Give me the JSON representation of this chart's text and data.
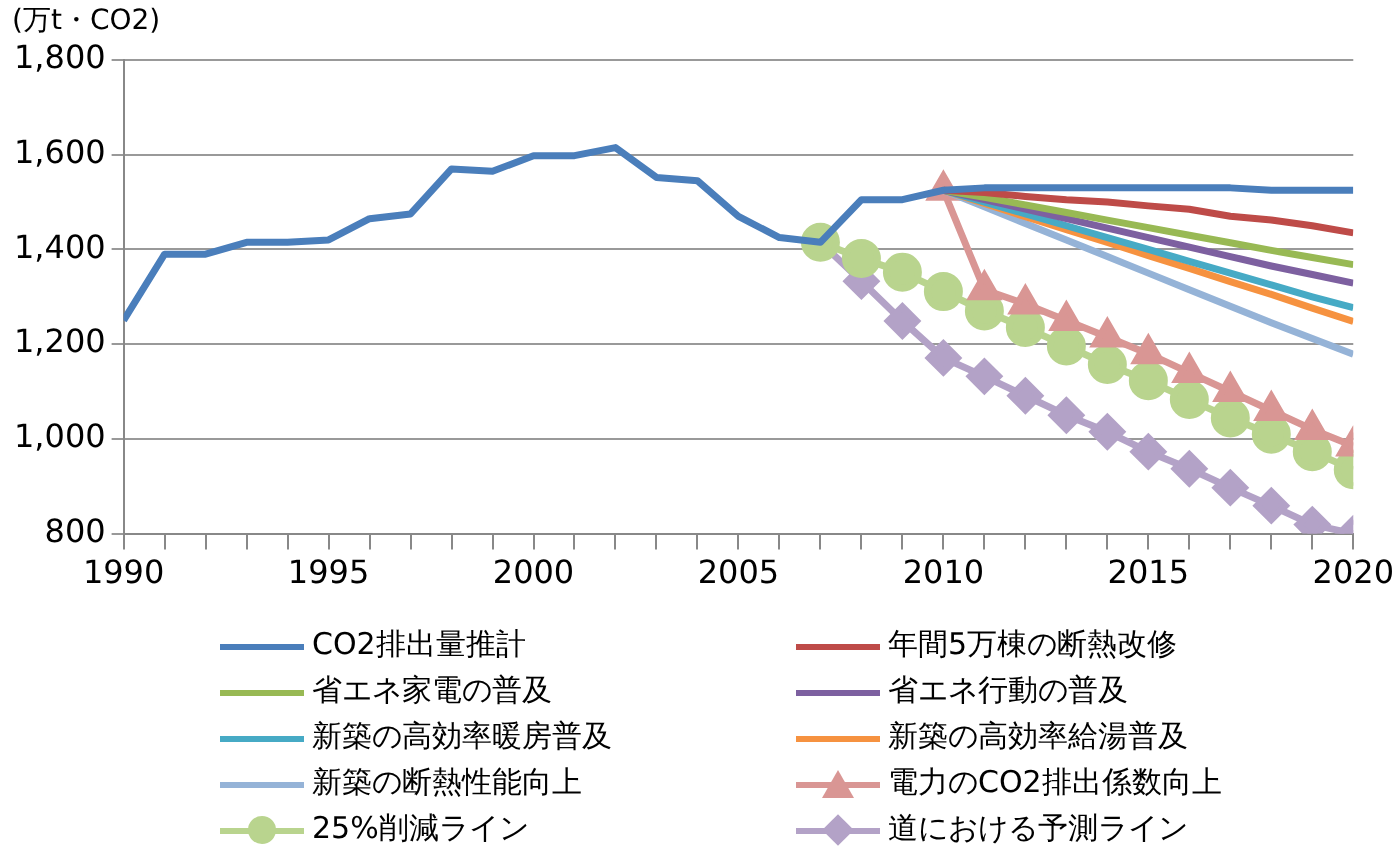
{
  "chart_data": {
    "type": "line",
    "ylabel": "(万t・CO2)",
    "x": [
      1990,
      1991,
      1992,
      1993,
      1994,
      1995,
      1996,
      1997,
      1998,
      1999,
      2000,
      2001,
      2002,
      2003,
      2004,
      2005,
      2006,
      2007,
      2008,
      2009,
      2010,
      2011,
      2012,
      2013,
      2014,
      2015,
      2016,
      2017,
      2018,
      2019,
      2020
    ],
    "xlim": [
      1990,
      2020
    ],
    "xticks": [
      1990,
      {
        "value": 1991,
        "label": null
      },
      {
        "value": 1992,
        "label": null
      },
      {
        "value": 1993,
        "label": null
      },
      {
        "value": 1994,
        "label": null
      },
      1995,
      {
        "value": 1996,
        "label": null
      },
      {
        "value": 1997,
        "label": null
      },
      {
        "value": 1998,
        "label": null
      },
      {
        "value": 1999,
        "label": null
      },
      2000,
      {
        "value": 2001,
        "label": null
      },
      {
        "value": 2002,
        "label": null
      },
      {
        "value": 2003,
        "label": null
      },
      {
        "value": 2004,
        "label": null
      },
      2005,
      {
        "value": 2006,
        "label": null
      },
      {
        "value": 2007,
        "label": null
      },
      {
        "value": 2008,
        "label": null
      },
      {
        "value": 2009,
        "label": null
      },
      2010,
      {
        "value": 2011,
        "label": null
      },
      {
        "value": 2012,
        "label": null
      },
      {
        "value": 2013,
        "label": null
      },
      {
        "value": 2014,
        "label": null
      },
      2015,
      {
        "value": 2016,
        "label": null
      },
      {
        "value": 2017,
        "label": null
      },
      {
        "value": 2018,
        "label": null
      },
      {
        "value": 2019,
        "label": null
      },
      2020
    ],
    "ylim": [
      800,
      1800
    ],
    "yticks": [
      {
        "value": 800,
        "label": "800"
      },
      {
        "value": 1000,
        "label": "1,000"
      },
      {
        "value": 1200,
        "label": "1,200"
      },
      {
        "value": 1400,
        "label": "1,400"
      },
      {
        "value": 1600,
        "label": "1,600"
      },
      {
        "value": 1800,
        "label": "1,800"
      }
    ],
    "grid": "y",
    "legend": "bottom",
    "line_style": "solid",
    "series": [
      {
        "name": "CO2排出量推計",
        "color": "#4a7ebb",
        "values": [
          1250,
          1390,
          1390,
          1415,
          1415,
          1420,
          1465,
          1475,
          1570,
          1565,
          1598,
          1598,
          1615,
          1552,
          1545,
          1470,
          1425,
          1415,
          1505,
          1505,
          1525,
          1530,
          1530,
          1530,
          1530,
          1530,
          1530,
          1530,
          1525,
          1525,
          1525
        ]
      },
      {
        "name": "年間5万棟の断熱改修",
        "color": "#be4b48",
        "x": [
          2010,
          2011,
          2012,
          2013,
          2014,
          2015,
          2016,
          2017,
          2018,
          2019,
          2020
        ],
        "values": [
          1525,
          1520,
          1512,
          1505,
          1500,
          1492,
          1485,
          1470,
          1462,
          1450,
          1435
        ]
      },
      {
        "name": "省エネ家電の普及",
        "color": "#98b954",
        "x": [
          2010,
          2011,
          2012,
          2013,
          2014,
          2015,
          2016,
          2017,
          2018,
          2019,
          2020
        ],
        "values": [
          1525,
          1510,
          1494,
          1478,
          1462,
          1446,
          1430,
          1414,
          1398,
          1383,
          1368
        ]
      },
      {
        "name": "省エネ行動の普及",
        "color": "#7d60a0",
        "x": [
          2010,
          2011,
          2012,
          2013,
          2014,
          2015,
          2016,
          2017,
          2018,
          2019,
          2020
        ],
        "values": [
          1525,
          1505,
          1485,
          1465,
          1445,
          1425,
          1405,
          1385,
          1365,
          1347,
          1329
        ]
      },
      {
        "name": "新築の高効率暖房普及",
        "color": "#46aac5",
        "x": [
          2010,
          2011,
          2012,
          2013,
          2014,
          2015,
          2016,
          2017,
          2018,
          2019,
          2020
        ],
        "values": [
          1525,
          1500,
          1475,
          1450,
          1425,
          1400,
          1375,
          1350,
          1325,
          1300,
          1277
        ]
      },
      {
        "name": "新築の高効率給湯普及",
        "color": "#f69240",
        "x": [
          2010,
          2011,
          2012,
          2013,
          2014,
          2015,
          2016,
          2017,
          2018,
          2019,
          2020
        ],
        "values": [
          1525,
          1497,
          1469,
          1442,
          1415,
          1387,
          1360,
          1332,
          1305,
          1276,
          1248
        ]
      },
      {
        "name": "新築の断熱性能向上",
        "color": "#95b3d7",
        "x": [
          2010,
          2011,
          2012,
          2013,
          2014,
          2015,
          2016,
          2017,
          2018,
          2019,
          2020
        ],
        "values": [
          1525,
          1490,
          1455,
          1420,
          1385,
          1350,
          1315,
          1280,
          1245,
          1212,
          1179
        ]
      },
      {
        "name": "電力のCO2排出係数向上",
        "color": "#d99694",
        "marker": "triangle",
        "x": [
          2010,
          2011,
          2012,
          2013,
          2014,
          2015,
          2016,
          2017,
          2018,
          2019,
          2020
        ],
        "values": [
          1525,
          1315,
          1285,
          1250,
          1215,
          1180,
          1140,
          1100,
          1060,
          1020,
          985
        ]
      },
      {
        "name": "25%削減ライン",
        "color": "#b9d48e",
        "marker": "circle",
        "x": [
          2007,
          2008,
          2009,
          2010,
          2011,
          2012,
          2013,
          2014,
          2015,
          2016,
          2017,
          2018,
          2019,
          2020
        ],
        "values": [
          1415,
          1381,
          1352,
          1311,
          1270,
          1235,
          1196,
          1157,
          1123,
          1083,
          1044,
          1010,
          973,
          935
        ]
      },
      {
        "name": "道における予測ライン",
        "color": "#b3a2c7",
        "marker": "diamond",
        "x": [
          2007,
          2008,
          2009,
          2010,
          2011,
          2012,
          2013,
          2014,
          2015,
          2016,
          2017,
          2018,
          2019,
          2020
        ],
        "values": [
          1415,
          1333,
          1249,
          1171,
          1132,
          1091,
          1050,
          1015,
          973,
          937,
          897,
          859,
          819,
          800
        ]
      }
    ]
  }
}
